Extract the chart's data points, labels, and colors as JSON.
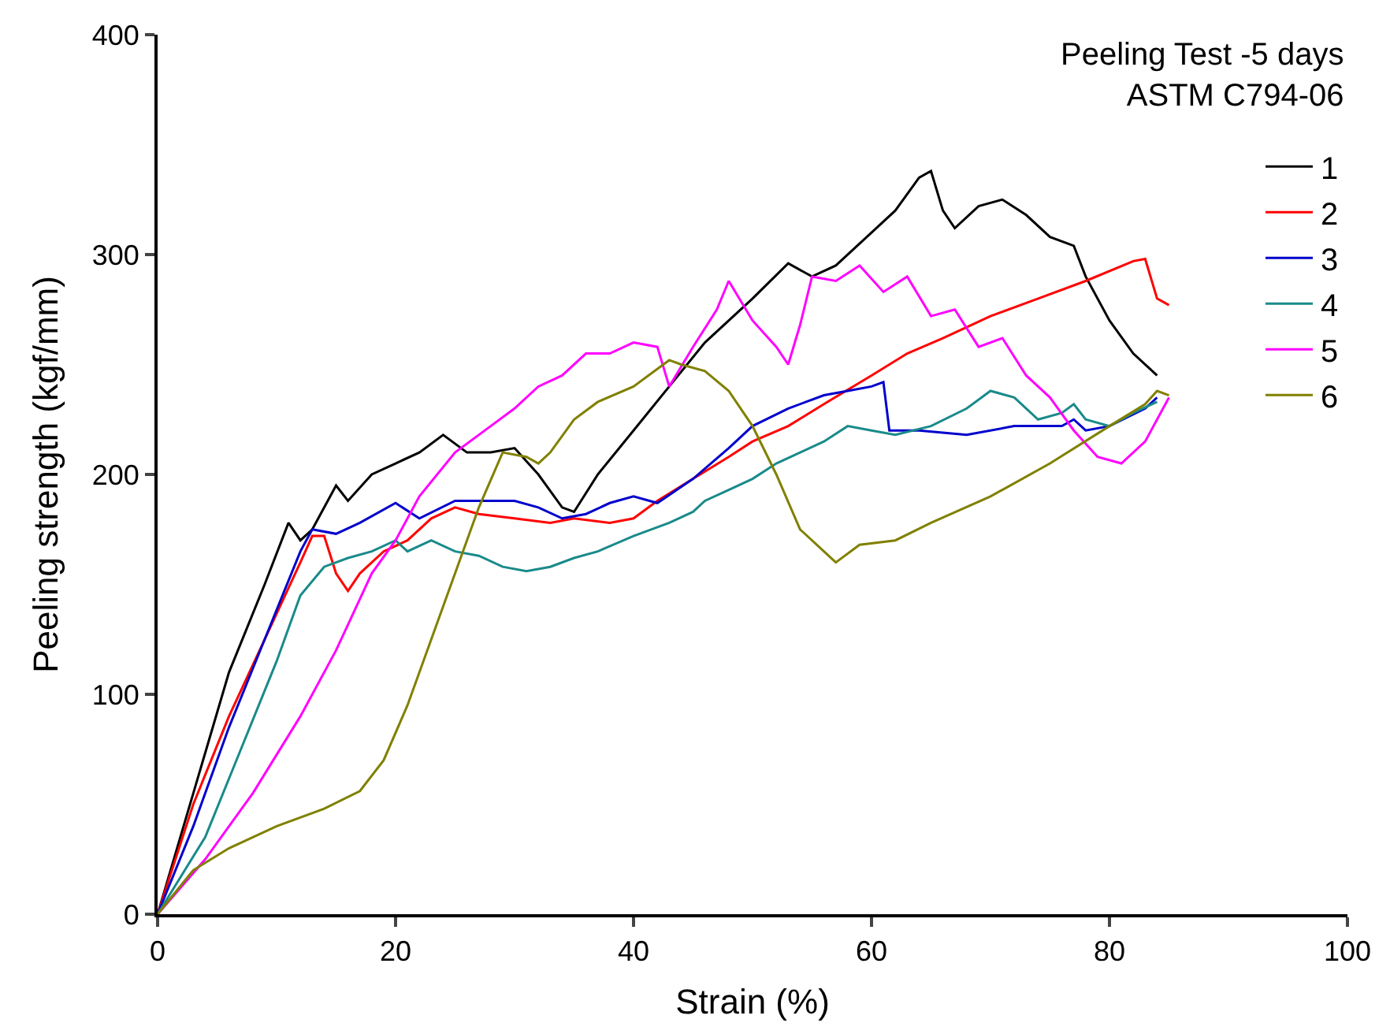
{
  "chart_data": {
    "type": "line",
    "xlabel": "Strain (%)",
    "ylabel": "Peeling strength (kgf/mm)",
    "legend_title": "Peeling Test -5 days\nASTM C794-06",
    "xlim": [
      0,
      100
    ],
    "xticks": [
      0,
      20,
      40,
      60,
      80,
      100
    ],
    "ylim": [
      0,
      400
    ],
    "yticks": [
      0,
      100,
      200,
      300,
      400
    ],
    "legend": "top right",
    "marker": "none",
    "line_style": "solid",
    "series": [
      {
        "name": "1",
        "color": "#000000",
        "x": [
          0,
          3,
          6,
          9,
          11,
          12,
          13,
          15,
          16,
          18,
          20,
          22,
          24,
          26,
          28,
          30,
          32,
          34,
          35,
          37,
          40,
          43,
          46,
          50,
          53,
          55,
          57,
          60,
          62,
          64,
          65,
          66,
          67,
          69,
          71,
          73,
          75,
          77,
          78,
          80,
          82,
          84
        ],
        "values": [
          0,
          55,
          110,
          150,
          178,
          170,
          175,
          195,
          188,
          200,
          205,
          210,
          218,
          210,
          210,
          212,
          200,
          185,
          183,
          200,
          220,
          240,
          260,
          280,
          296,
          290,
          295,
          310,
          320,
          335,
          338,
          320,
          312,
          322,
          325,
          318,
          308,
          304,
          290,
          270,
          255,
          245
        ]
      },
      {
        "name": "2",
        "color": "#ff0000",
        "x": [
          0,
          3,
          6,
          9,
          12,
          13,
          14,
          15,
          16,
          17,
          19,
          21,
          23,
          25,
          27,
          30,
          33,
          35,
          38,
          40,
          42,
          45,
          48,
          50,
          53,
          56,
          60,
          63,
          66,
          70,
          74,
          78,
          82,
          83,
          84,
          85
        ],
        "values": [
          0,
          50,
          90,
          125,
          160,
          172,
          172,
          155,
          147,
          155,
          165,
          170,
          180,
          185,
          182,
          180,
          178,
          180,
          178,
          180,
          188,
          198,
          208,
          215,
          222,
          232,
          245,
          255,
          262,
          272,
          280,
          288,
          297,
          298,
          280,
          277
        ]
      },
      {
        "name": "3",
        "color": "#0000cc",
        "x": [
          0,
          3,
          6,
          9,
          12,
          13,
          15,
          17,
          20,
          22,
          25,
          28,
          30,
          32,
          34,
          36,
          38,
          40,
          42,
          45,
          48,
          50,
          53,
          56,
          58,
          60,
          61,
          61.5,
          64,
          68,
          72,
          76,
          77,
          78,
          80,
          83,
          84
        ],
        "values": [
          0,
          40,
          85,
          125,
          165,
          175,
          173,
          178,
          187,
          180,
          188,
          188,
          188,
          185,
          180,
          182,
          187,
          190,
          187,
          198,
          212,
          222,
          230,
          236,
          238,
          240,
          242,
          220,
          220,
          218,
          222,
          222,
          225,
          220,
          222,
          230,
          235
        ]
      },
      {
        "name": "4",
        "color": "#1a8a8a",
        "x": [
          0,
          4,
          7,
          10,
          12,
          14,
          16,
          18,
          20,
          21,
          23,
          25,
          27,
          29,
          31,
          33,
          35,
          37,
          40,
          43,
          45,
          46,
          48,
          50,
          52,
          54,
          56,
          58,
          60,
          62,
          65,
          68,
          70,
          72,
          74,
          76,
          77,
          78,
          80,
          82,
          84
        ],
        "values": [
          0,
          35,
          75,
          115,
          145,
          158,
          162,
          165,
          170,
          165,
          170,
          165,
          163,
          158,
          156,
          158,
          162,
          165,
          172,
          178,
          183,
          188,
          193,
          198,
          205,
          210,
          215,
          222,
          220,
          218,
          222,
          230,
          238,
          235,
          225,
          228,
          232,
          225,
          222,
          228,
          233
        ]
      },
      {
        "name": "5",
        "color": "#ff00ff",
        "x": [
          0,
          4,
          8,
          12,
          15,
          18,
          20,
          22,
          25,
          28,
          30,
          32,
          34,
          36,
          38,
          40,
          42,
          43,
          45,
          47,
          48,
          50,
          52,
          53,
          54,
          55,
          57,
          59,
          61,
          63,
          65,
          67,
          69,
          71,
          73,
          75,
          77,
          79,
          81,
          83,
          85
        ],
        "values": [
          0,
          25,
          55,
          90,
          120,
          155,
          170,
          190,
          210,
          222,
          230,
          240,
          245,
          255,
          255,
          260,
          258,
          240,
          258,
          275,
          288,
          270,
          258,
          250,
          268,
          290,
          288,
          295,
          283,
          290,
          272,
          275,
          258,
          262,
          245,
          235,
          220,
          208,
          205,
          215,
          235
        ]
      },
      {
        "name": "6",
        "color": "#808000",
        "x": [
          0,
          3,
          6,
          10,
          14,
          17,
          19,
          21,
          23,
          25,
          27,
          29,
          31,
          32,
          33,
          35,
          37,
          40,
          43,
          44,
          46,
          48,
          50,
          52,
          54,
          56,
          57,
          59,
          62,
          65,
          70,
          75,
          80,
          83,
          84,
          85
        ],
        "values": [
          0,
          20,
          30,
          40,
          48,
          56,
          70,
          95,
          125,
          155,
          185,
          210,
          208,
          205,
          210,
          225,
          233,
          240,
          252,
          250,
          247,
          238,
          222,
          200,
          175,
          165,
          160,
          168,
          170,
          178,
          190,
          205,
          222,
          232,
          238,
          236
        ]
      }
    ]
  }
}
